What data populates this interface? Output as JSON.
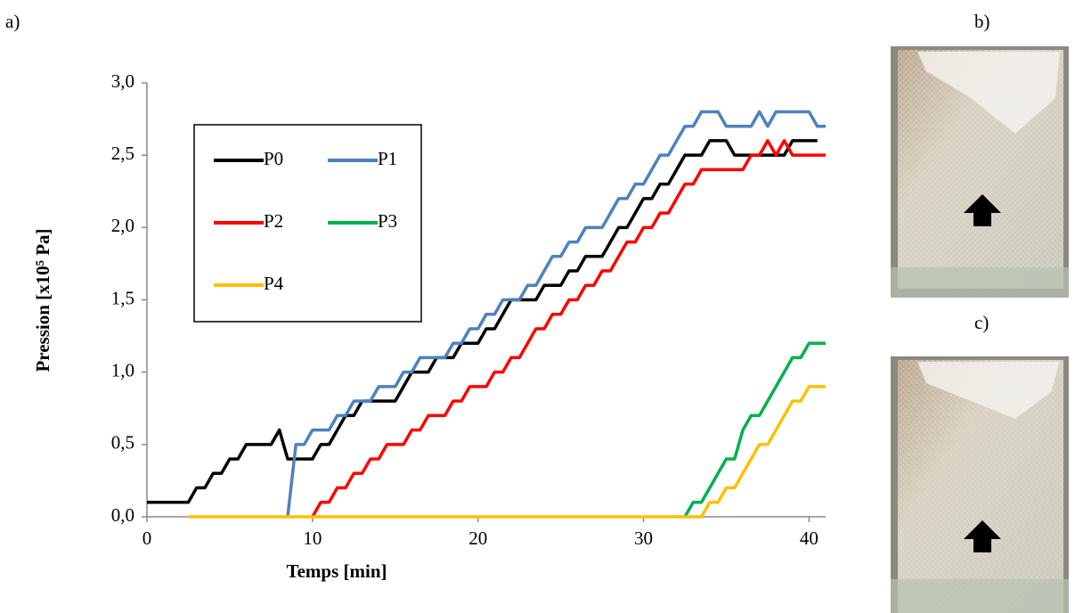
{
  "chart_data": {
    "type": "line",
    "xlabel": "Temps [min]",
    "ylabel": "Pression [x10⁵ Pa]",
    "annotations": [
      "a)",
      "b)",
      "c)"
    ],
    "xlim": [
      0,
      41
    ],
    "xticks": [
      0,
      10,
      20,
      30,
      40
    ],
    "ylim": [
      0,
      3
    ],
    "yticks": [
      {
        "value": 0,
        "label": "0,0"
      },
      {
        "value": 0.5,
        "label": "0,5"
      },
      {
        "value": 1,
        "label": "1,0"
      },
      {
        "value": 1.5,
        "label": "1,5"
      },
      {
        "value": 2,
        "label": "2,0"
      },
      {
        "value": 2.5,
        "label": "2,5"
      },
      {
        "value": 3,
        "label": "3,0"
      }
    ],
    "grid": false,
    "legend": "upper left",
    "x": [
      0,
      0.5,
      1,
      1.5,
      2,
      2.5,
      3,
      3.5,
      4,
      4.5,
      5,
      5.5,
      6,
      6.5,
      7,
      7.5,
      8,
      8.5,
      9,
      9.5,
      10,
      10.5,
      11,
      11.5,
      12,
      12.5,
      13,
      13.5,
      14,
      14.5,
      15,
      15.5,
      16,
      16.5,
      17,
      17.5,
      18,
      18.5,
      19,
      19.5,
      20,
      20.5,
      21,
      21.5,
      22,
      22.5,
      23,
      23.5,
      24,
      24.5,
      25,
      25.5,
      26,
      26.5,
      27,
      27.5,
      28,
      28.5,
      29,
      29.5,
      30,
      30.5,
      31,
      31.5,
      32,
      32.5,
      33,
      33.5,
      34,
      34.5,
      35,
      35.5,
      36,
      36.5,
      37,
      37.5,
      38,
      38.5,
      39,
      39.5,
      40,
      40.5,
      41
    ],
    "series": [
      {
        "name": "P0",
        "color": "#000000",
        "values": [
          0.1,
          0.1,
          0.1,
          0.1,
          0.1,
          0.1,
          0.2,
          0.2,
          0.3,
          0.3,
          0.4,
          0.4,
          0.5,
          0.5,
          0.5,
          0.5,
          0.6,
          0.4,
          0.4,
          0.4,
          0.4,
          0.5,
          0.5,
          0.6,
          0.7,
          0.7,
          0.8,
          0.8,
          0.8,
          0.8,
          0.8,
          0.9,
          1.0,
          1.0,
          1.0,
          1.1,
          1.1,
          1.1,
          1.2,
          1.2,
          1.2,
          1.3,
          1.3,
          1.4,
          1.5,
          1.5,
          1.5,
          1.5,
          1.6,
          1.6,
          1.6,
          1.7,
          1.7,
          1.8,
          1.8,
          1.8,
          1.9,
          2.0,
          2.0,
          2.1,
          2.2,
          2.2,
          2.3,
          2.3,
          2.4,
          2.5,
          2.5,
          2.5,
          2.6,
          2.6,
          2.6,
          2.5,
          2.5,
          2.5,
          2.5,
          2.5,
          2.5,
          2.5,
          2.6,
          2.6,
          2.6,
          2.6,
          null
        ]
      },
      {
        "name": "P1",
        "color": "#4f81bd",
        "values": [
          null,
          null,
          null,
          null,
          null,
          null,
          null,
          null,
          null,
          null,
          null,
          null,
          null,
          null,
          null,
          null,
          null,
          0.0,
          0.5,
          0.5,
          0.6,
          0.6,
          0.6,
          0.7,
          0.7,
          0.8,
          0.8,
          0.8,
          0.9,
          0.9,
          0.9,
          1.0,
          1.0,
          1.1,
          1.1,
          1.1,
          1.1,
          1.2,
          1.2,
          1.3,
          1.3,
          1.4,
          1.4,
          1.5,
          1.5,
          1.5,
          1.6,
          1.6,
          1.7,
          1.8,
          1.8,
          1.9,
          1.9,
          2.0,
          2.0,
          2.0,
          2.1,
          2.2,
          2.2,
          2.3,
          2.3,
          2.4,
          2.5,
          2.5,
          2.6,
          2.7,
          2.7,
          2.8,
          2.8,
          2.8,
          2.7,
          2.7,
          2.7,
          2.7,
          2.8,
          2.7,
          2.8,
          2.8,
          2.8,
          2.8,
          2.8,
          2.7,
          2.7
        ]
      },
      {
        "name": "P2",
        "color": "#ff0000",
        "values": [
          null,
          null,
          null,
          null,
          null,
          null,
          null,
          null,
          null,
          null,
          null,
          null,
          null,
          null,
          null,
          null,
          null,
          null,
          null,
          null,
          0.0,
          0.1,
          0.1,
          0.2,
          0.2,
          0.3,
          0.3,
          0.4,
          0.4,
          0.5,
          0.5,
          0.5,
          0.6,
          0.6,
          0.7,
          0.7,
          0.7,
          0.8,
          0.8,
          0.9,
          0.9,
          0.9,
          1.0,
          1.0,
          1.1,
          1.1,
          1.2,
          1.3,
          1.3,
          1.4,
          1.4,
          1.5,
          1.5,
          1.6,
          1.6,
          1.7,
          1.7,
          1.8,
          1.9,
          1.9,
          2.0,
          2.0,
          2.1,
          2.1,
          2.2,
          2.3,
          2.3,
          2.4,
          2.4,
          2.4,
          2.4,
          2.4,
          2.4,
          2.5,
          2.5,
          2.6,
          2.5,
          2.6,
          2.5,
          2.5,
          2.5,
          2.5,
          2.5
        ]
      },
      {
        "name": "P3",
        "color": "#00b050",
        "values": [
          null,
          null,
          null,
          null,
          null,
          null,
          null,
          null,
          null,
          null,
          null,
          null,
          null,
          null,
          null,
          null,
          null,
          null,
          null,
          null,
          null,
          null,
          null,
          null,
          null,
          null,
          null,
          null,
          null,
          null,
          null,
          null,
          null,
          null,
          null,
          null,
          null,
          null,
          null,
          null,
          null,
          null,
          null,
          null,
          null,
          null,
          null,
          null,
          null,
          null,
          null,
          null,
          null,
          null,
          null,
          null,
          null,
          null,
          null,
          null,
          null,
          null,
          null,
          null,
          null,
          0.0,
          0.1,
          0.1,
          0.2,
          0.3,
          0.4,
          0.4,
          0.6,
          0.7,
          0.7,
          0.8,
          0.9,
          1.0,
          1.1,
          1.1,
          1.2,
          1.2,
          1.2
        ]
      },
      {
        "name": "P4",
        "color": "#ffc000",
        "values": [
          null,
          null,
          null,
          null,
          null,
          0.0,
          0.0,
          0.0,
          0.0,
          0.0,
          0.0,
          0.0,
          0.0,
          0.0,
          0.0,
          0.0,
          0.0,
          0.0,
          0.0,
          0.0,
          0.0,
          0.0,
          0.0,
          0.0,
          0.0,
          0.0,
          0.0,
          0.0,
          0.0,
          0.0,
          0.0,
          0.0,
          0.0,
          0.0,
          0.0,
          0.0,
          0.0,
          0.0,
          0.0,
          0.0,
          0.0,
          0.0,
          0.0,
          0.0,
          0.0,
          0.0,
          0.0,
          0.0,
          0.0,
          0.0,
          0.0,
          0.0,
          0.0,
          0.0,
          0.0,
          0.0,
          0.0,
          0.0,
          0.0,
          0.0,
          0.0,
          0.0,
          0.0,
          0.0,
          0.0,
          0.0,
          0.0,
          0.0,
          0.1,
          0.1,
          0.2,
          0.2,
          0.3,
          0.4,
          0.5,
          0.5,
          0.6,
          0.7,
          0.8,
          0.8,
          0.9,
          0.9,
          0.9
        ]
      }
    ]
  }
}
